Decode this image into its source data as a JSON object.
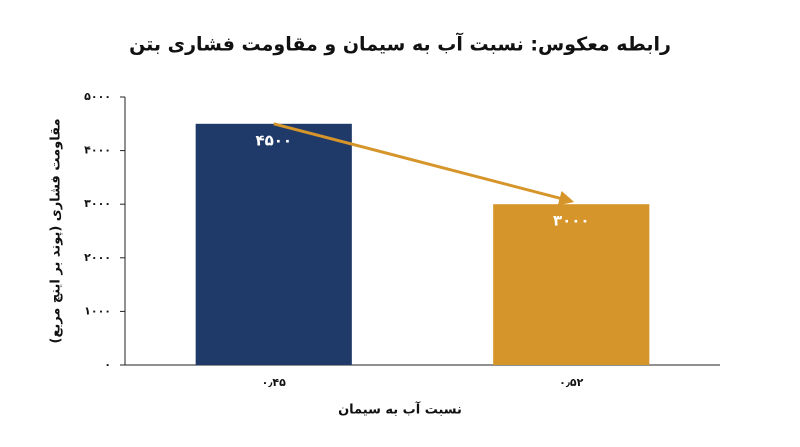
{
  "chart_data": {
    "type": "bar",
    "title": "رابطه معکوس: نسبت آب به سیمان و مقاومت فشاری بتن",
    "x_label": "نسبت آب به سیمان",
    "y_label": "مقاومت فشاری (پوند بر اینچ مربع)",
    "categories": [
      "۰٫۴۵",
      "۰٫۵۲"
    ],
    "values": [
      4500,
      3000
    ],
    "value_labels": [
      "۴۵۰۰",
      "۳۰۰۰"
    ],
    "colors": [
      "#1f3a68",
      "#d6952a"
    ],
    "ylim": [
      0,
      5000
    ],
    "yticks": [
      {
        "value": 0,
        "label": "۰"
      },
      {
        "value": 1000,
        "label": "۱۰۰۰"
      },
      {
        "value": 2000,
        "label": "۲۰۰۰"
      },
      {
        "value": 3000,
        "label": "۳۰۰۰"
      },
      {
        "value": 4000,
        "label": "۴۰۰۰"
      },
      {
        "value": 5000,
        "label": "۵۰۰۰"
      }
    ],
    "grid": false
  }
}
